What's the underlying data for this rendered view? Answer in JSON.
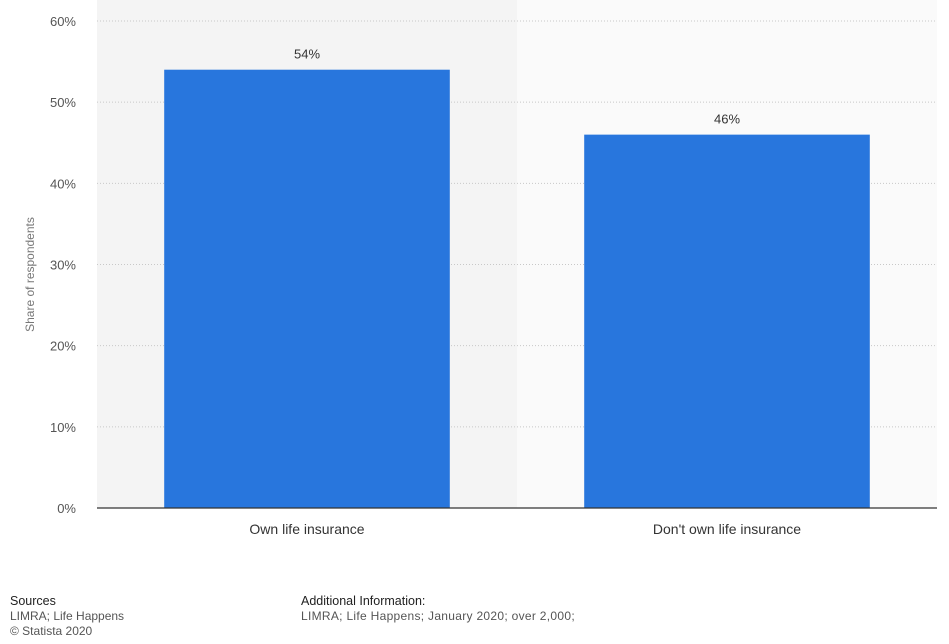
{
  "chart_data": {
    "type": "bar",
    "categories": [
      "Own life insurance",
      "Don't own life insurance"
    ],
    "values": [
      54,
      46
    ],
    "value_labels": [
      "54%",
      "46%"
    ],
    "title": "",
    "xlabel": "",
    "ylabel": "Share of respondents",
    "ylim": [
      0,
      60
    ],
    "y_ticks": [
      0,
      10,
      20,
      30,
      40,
      50,
      60
    ],
    "y_tick_labels": [
      "0%",
      "10%",
      "20%",
      "30%",
      "40%",
      "50%",
      "60%"
    ],
    "grid": true,
    "legend": "none",
    "bar_color": "#2876dd"
  },
  "footer": {
    "sources_heading": "Sources",
    "sources_text": "LIMRA; Life Happens",
    "copyright": "© Statista 2020",
    "additional_heading": "Additional Information:",
    "additional_text": "LIMRA; Life Happens; January 2020; over 2,000;"
  }
}
